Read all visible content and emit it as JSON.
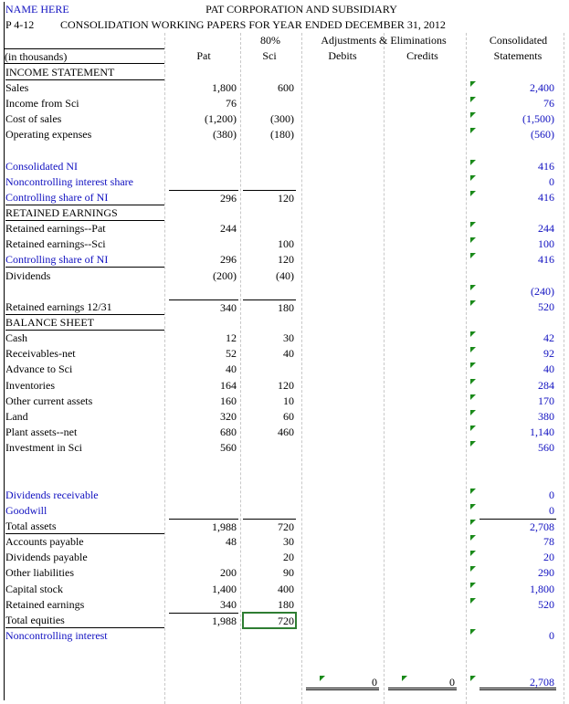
{
  "header": {
    "name": "NAME HERE",
    "title": "PAT CORPORATION AND SUBSIDIARY",
    "problem": "P 4-12",
    "subtitle": "CONSOLIDATION WORKING PAPERS FOR YEAR ENDED DECEMBER 31, 2012",
    "ownership": "80%",
    "adjustments": "Adjustments & Eliminations",
    "consolidated": "Consolidated",
    "units": "(in thousands)",
    "columns": [
      "Pat",
      "Sci",
      "Debits",
      "Credits",
      "Statements"
    ]
  },
  "table": {
    "rows": [
      [
        "INCOME STATEMENT",
        null,
        null,
        null,
        null,
        null
      ],
      [
        "Sales",
        "1,800",
        "600",
        null,
        null,
        "2,400"
      ],
      [
        "Income from Sci",
        "76",
        null,
        null,
        null,
        "76"
      ],
      [
        "Cost of sales",
        "(1,200)",
        "(300)",
        null,
        null,
        "(1,500)"
      ],
      [
        "Operating expenses",
        "(380)",
        "(180)",
        null,
        null,
        "(560)"
      ],
      [
        null,
        null,
        null,
        null,
        null,
        null
      ],
      [
        "Consolidated NI",
        null,
        null,
        null,
        null,
        "416"
      ],
      [
        "Noncontrolling interest share",
        null,
        null,
        null,
        null,
        "0"
      ],
      [
        "Controlling share of NI",
        "296",
        "120",
        null,
        null,
        "416"
      ],
      [
        "RETAINED EARNINGS",
        null,
        null,
        null,
        null,
        null
      ],
      [
        "Retained earnings--Pat",
        "244",
        null,
        null,
        null,
        "244"
      ],
      [
        "Retained earnings--Sci",
        null,
        "100",
        null,
        null,
        "100"
      ],
      [
        "Controlling share of NI",
        "296",
        "120",
        null,
        null,
        "416"
      ],
      [
        "Dividends",
        "(200)",
        "(40)",
        null,
        null,
        null
      ],
      [
        null,
        null,
        null,
        null,
        null,
        "(240)"
      ],
      [
        "Retained earnings 12/31",
        "340",
        "180",
        null,
        null,
        "520"
      ],
      [
        "BALANCE SHEET",
        null,
        null,
        null,
        null,
        null
      ],
      [
        "Cash",
        "12",
        "30",
        null,
        null,
        "42"
      ],
      [
        "Receivables-net",
        "52",
        "40",
        null,
        null,
        "92"
      ],
      [
        "Advance to Sci",
        "40",
        null,
        null,
        null,
        "40"
      ],
      [
        "Inventories",
        "164",
        "120",
        null,
        null,
        "284"
      ],
      [
        "Other current assets",
        "160",
        "10",
        null,
        null,
        "170"
      ],
      [
        "Land",
        "320",
        "60",
        null,
        null,
        "380"
      ],
      [
        "Plant assets--net",
        "680",
        "460",
        null,
        null,
        "1,140"
      ],
      [
        "Investment in Sci",
        "560",
        null,
        null,
        null,
        "560"
      ],
      [
        null,
        null,
        null,
        null,
        null,
        null
      ],
      [
        null,
        null,
        null,
        null,
        null,
        null
      ],
      [
        "Dividends receivable",
        null,
        null,
        null,
        null,
        "0"
      ],
      [
        "Goodwill",
        null,
        null,
        null,
        null,
        "0"
      ],
      [
        "Total assets",
        "1,988",
        "720",
        null,
        null,
        "2,708"
      ],
      [
        "Accounts payable",
        "48",
        "30",
        null,
        null,
        "78"
      ],
      [
        "Dividends payable",
        null,
        "20",
        null,
        null,
        "20"
      ],
      [
        "Other liabilities",
        "200",
        "90",
        null,
        null,
        "290"
      ],
      [
        "Capital stock",
        "1,400",
        "400",
        null,
        null,
        "1,800"
      ],
      [
        "Retained earnings",
        "340",
        "180",
        null,
        null,
        "520"
      ],
      [
        "Total equities",
        "1,988",
        "720",
        null,
        null,
        null
      ],
      [
        "Noncontrolling interest",
        null,
        null,
        null,
        null,
        "0"
      ],
      [
        null,
        null,
        null,
        null,
        null,
        null
      ],
      [
        null,
        null,
        null,
        null,
        null,
        null
      ],
      [
        null,
        null,
        null,
        "0",
        "0",
        "2,708"
      ]
    ]
  }
}
